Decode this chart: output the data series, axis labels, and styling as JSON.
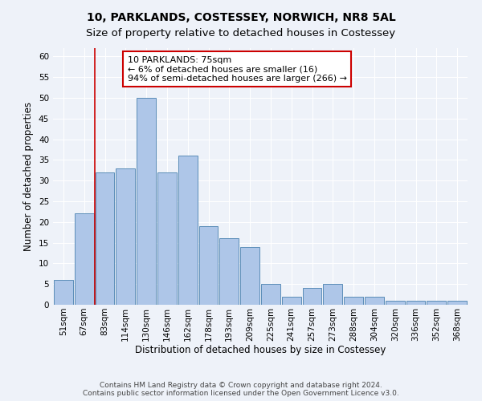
{
  "title": "10, PARKLANDS, COSTESSEY, NORWICH, NR8 5AL",
  "subtitle": "Size of property relative to detached houses in Costessey",
  "xlabel": "Distribution of detached houses by size in Costessey",
  "ylabel": "Number of detached properties",
  "bar_labels": [
    "51sqm",
    "67sqm",
    "83sqm",
    "114sqm",
    "130sqm",
    "146sqm",
    "162sqm",
    "178sqm",
    "193sqm",
    "209sqm",
    "225sqm",
    "241sqm",
    "257sqm",
    "273sqm",
    "288sqm",
    "304sqm",
    "320sqm",
    "336sqm",
    "352sqm",
    "368sqm"
  ],
  "bar_values": [
    6,
    22,
    32,
    33,
    50,
    32,
    36,
    19,
    16,
    14,
    5,
    2,
    4,
    5,
    2,
    2,
    1,
    1,
    1,
    1
  ],
  "bar_color": "#aec6e8",
  "bar_edge_color": "#5b8db8",
  "annotation_text": "10 PARKLANDS: 75sqm\n← 6% of detached houses are smaller (16)\n94% of semi-detached houses are larger (266) →",
  "annotation_box_color": "#ffffff",
  "annotation_box_edge_color": "#cc0000",
  "vline_color": "#cc0000",
  "vline_pos": 1.5,
  "ylim": [
    0,
    62
  ],
  "yticks": [
    0,
    5,
    10,
    15,
    20,
    25,
    30,
    35,
    40,
    45,
    50,
    55,
    60
  ],
  "footer": "Contains HM Land Registry data © Crown copyright and database right 2024.\nContains public sector information licensed under the Open Government Licence v3.0.",
  "background_color": "#eef2f9",
  "grid_color": "#ffffff",
  "title_fontsize": 10,
  "subtitle_fontsize": 9.5,
  "axis_label_fontsize": 8.5,
  "tick_fontsize": 7.5,
  "annotation_fontsize": 8,
  "footer_fontsize": 6.5
}
